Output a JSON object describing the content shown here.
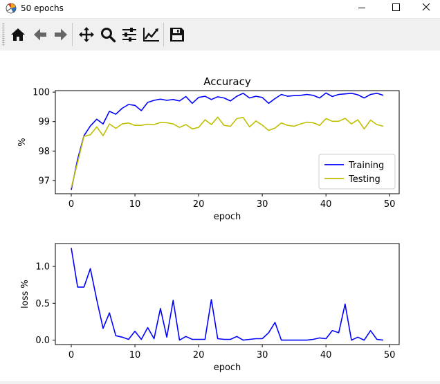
{
  "window": {
    "title": "50 epochs"
  },
  "toolbar": {
    "buttons": [
      {
        "name": "home-button",
        "icon": "home-icon"
      },
      {
        "name": "back-button",
        "icon": "arrow-left-icon"
      },
      {
        "name": "forward-button",
        "icon": "arrow-right-icon"
      },
      {
        "name": "pan-button",
        "icon": "move-icon"
      },
      {
        "name": "zoom-button",
        "icon": "magnifier-icon"
      },
      {
        "name": "subplots-button",
        "icon": "sliders-icon"
      },
      {
        "name": "customize-button",
        "icon": "line-chart-icon"
      },
      {
        "name": "save-button",
        "icon": "floppy-disk-icon"
      }
    ]
  },
  "colors": {
    "training": "#0000ff",
    "testing": "#bfbf00",
    "loss": "#0000ff"
  },
  "chart_data": [
    {
      "type": "line",
      "title": "Accuracy",
      "xlabel": "epoch",
      "ylabel": "%",
      "xlim": [
        -2.5,
        51.5
      ],
      "ylim": [
        96.55,
        100.05
      ],
      "xticks": [
        0,
        10,
        20,
        30,
        40,
        50
      ],
      "yticks": [
        97,
        98,
        99,
        100
      ],
      "legend_position": "lower-right",
      "x": [
        0,
        1,
        2,
        3,
        4,
        5,
        6,
        7,
        8,
        9,
        10,
        11,
        12,
        13,
        14,
        15,
        16,
        17,
        18,
        19,
        20,
        21,
        22,
        23,
        24,
        25,
        26,
        27,
        28,
        29,
        30,
        31,
        32,
        33,
        34,
        35,
        36,
        37,
        38,
        39,
        40,
        41,
        42,
        43,
        44,
        45,
        46,
        47,
        48,
        49
      ],
      "series": [
        {
          "name": "Training",
          "color": "#0000ff",
          "values": [
            96.68,
            97.72,
            98.52,
            98.85,
            99.08,
            98.92,
            99.35,
            99.25,
            99.45,
            99.58,
            99.55,
            99.37,
            99.65,
            99.72,
            99.76,
            99.72,
            99.75,
            99.7,
            99.85,
            99.62,
            99.82,
            99.86,
            99.75,
            99.84,
            99.8,
            99.7,
            99.86,
            99.96,
            99.8,
            99.86,
            99.82,
            99.62,
            99.78,
            99.92,
            99.86,
            99.88,
            99.89,
            99.92,
            99.89,
            99.8,
            99.97,
            99.85,
            99.92,
            99.94,
            99.96,
            99.91,
            99.8,
            99.92,
            99.96,
            99.89
          ]
        },
        {
          "name": "Testing",
          "color": "#bfbf00",
          "values": [
            96.75,
            97.62,
            98.5,
            98.55,
            98.82,
            98.52,
            98.92,
            98.77,
            98.92,
            98.95,
            98.87,
            98.87,
            98.91,
            98.9,
            98.97,
            98.96,
            98.92,
            98.8,
            98.9,
            98.75,
            98.8,
            99.06,
            98.9,
            99.15,
            98.87,
            98.84,
            99.1,
            99.14,
            98.82,
            99.02,
            98.88,
            98.7,
            98.78,
            98.95,
            98.87,
            98.84,
            98.92,
            98.98,
            98.96,
            98.87,
            99.1,
            99.01,
            99.01,
            99.11,
            98.92,
            99.06,
            98.75,
            99.05,
            98.9,
            98.84
          ]
        }
      ]
    },
    {
      "type": "line",
      "title": "",
      "xlabel": "epoch",
      "ylabel": "loss %",
      "xlim": [
        -2.5,
        51.5
      ],
      "ylim": [
        -0.06,
        1.31
      ],
      "xticks": [
        0,
        10,
        20,
        30,
        40,
        50
      ],
      "yticks": [
        0.0,
        0.5,
        1.0
      ],
      "ytick_labels": [
        "0.0",
        "0.5",
        "1.0"
      ],
      "x": [
        0,
        1,
        2,
        3,
        4,
        5,
        6,
        7,
        8,
        9,
        10,
        11,
        12,
        13,
        14,
        15,
        16,
        17,
        18,
        19,
        20,
        21,
        22,
        23,
        24,
        25,
        26,
        27,
        28,
        29,
        30,
        31,
        32,
        33,
        34,
        35,
        36,
        37,
        38,
        39,
        40,
        41,
        42,
        43,
        44,
        45,
        46,
        47,
        48,
        49
      ],
      "series": [
        {
          "color": "#0000ff",
          "values": [
            1.25,
            0.72,
            0.72,
            0.97,
            0.55,
            0.16,
            0.37,
            0.06,
            0.04,
            0.01,
            0.12,
            0.01,
            0.17,
            0.02,
            0.43,
            0.04,
            0.54,
            0.0,
            0.05,
            0.01,
            0.01,
            0.01,
            0.55,
            0.02,
            0.01,
            0.01,
            0.05,
            0.0,
            0.01,
            0.02,
            0.02,
            0.1,
            0.24,
            0.0,
            0.0,
            0.0,
            0.0,
            0.0,
            0.01,
            0.03,
            0.02,
            0.13,
            0.1,
            0.49,
            0.0,
            0.04,
            0.0,
            0.13,
            0.01,
            0.0
          ]
        }
      ]
    }
  ]
}
